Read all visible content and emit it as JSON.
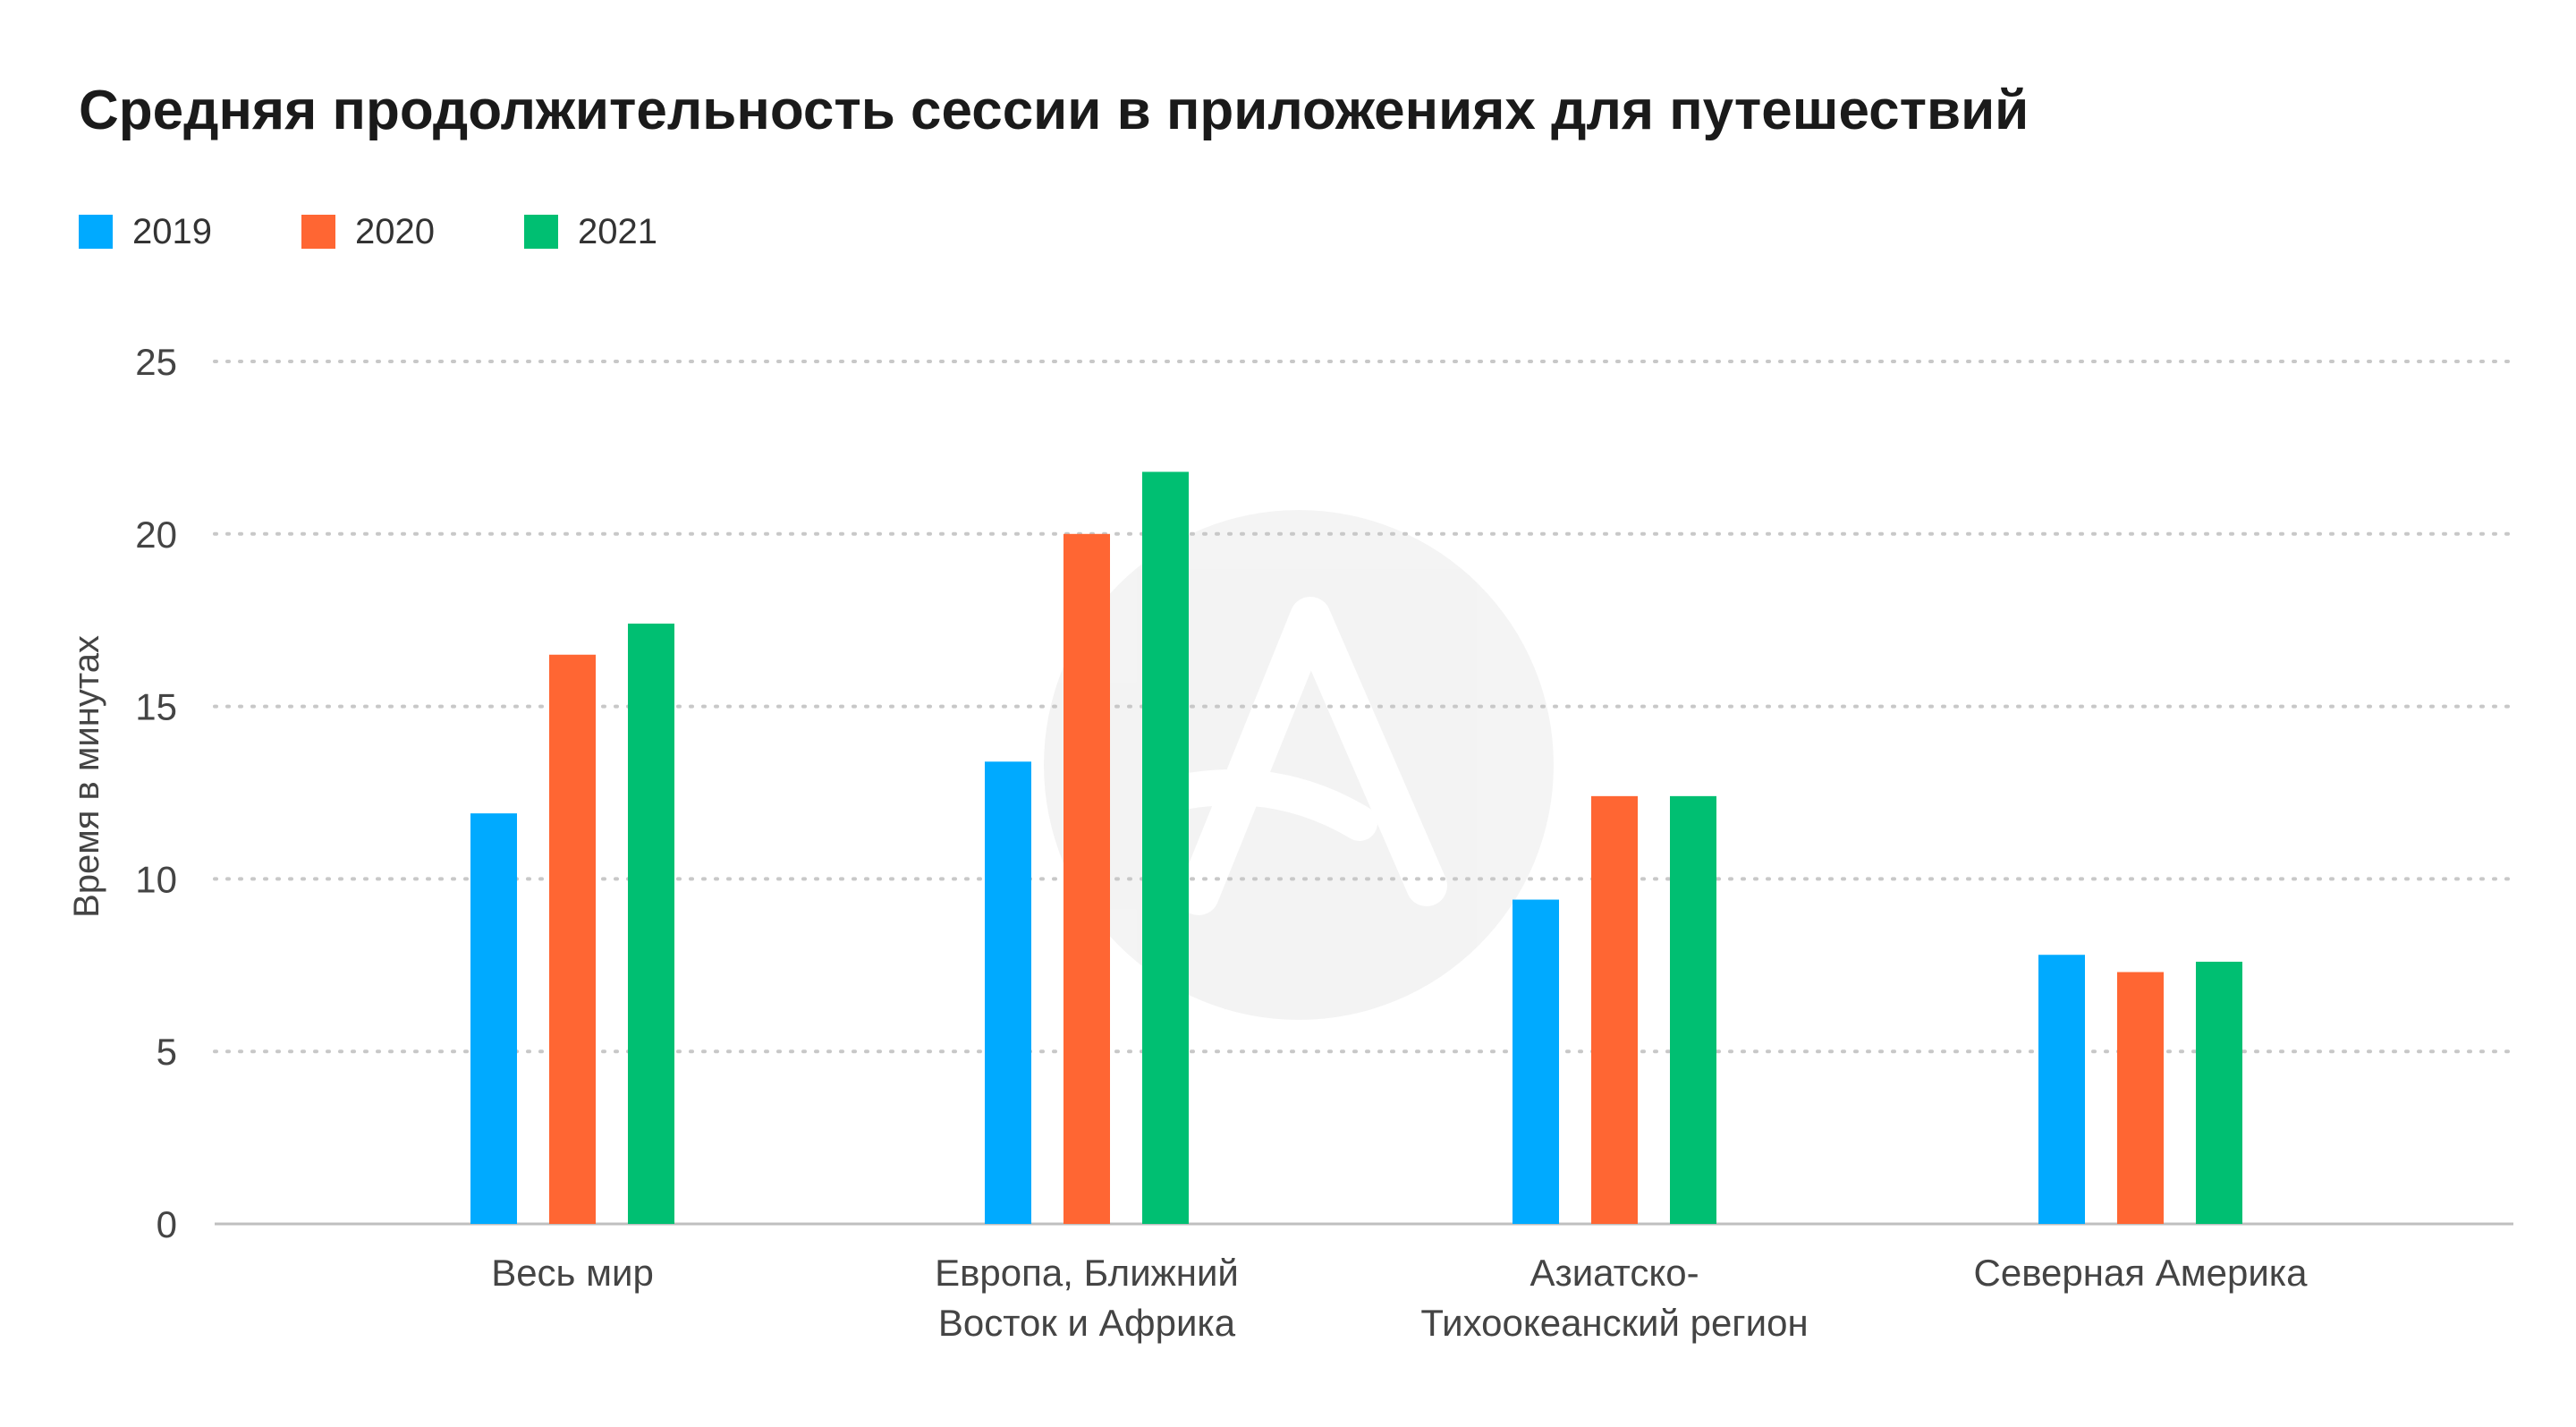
{
  "chart_data": {
    "type": "bar",
    "title": "Средняя продолжительность сессии в приложениях для путешествий",
    "ylabel": "Время в минутах",
    "xlabel": "",
    "ylim": [
      0,
      25
    ],
    "yticks": [
      "0",
      "5",
      "10",
      "15",
      "20",
      "25"
    ],
    "grid": true,
    "legend_position": "top-left",
    "categories": [
      [
        "Весь мир"
      ],
      [
        "Европа, Ближний",
        "Восток и Африка"
      ],
      [
        "Азиатско-",
        "Тихоокеанский регион"
      ],
      [
        "Северная Америка"
      ]
    ],
    "series": [
      {
        "name": "2019",
        "color": "#00AAFF",
        "values": [
          11.9,
          13.4,
          9.4,
          7.8
        ]
      },
      {
        "name": "2020",
        "color": "#FF6633",
        "values": [
          16.5,
          20.0,
          12.4,
          7.3
        ]
      },
      {
        "name": "2021",
        "color": "#00BF72",
        "values": [
          17.4,
          21.8,
          12.4,
          7.6
        ]
      }
    ]
  }
}
